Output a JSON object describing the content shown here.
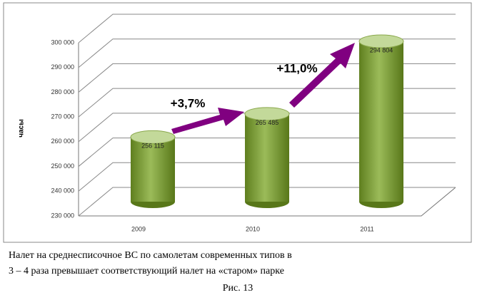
{
  "chart_data": {
    "type": "bar3d",
    "y_label": "часы",
    "categories": [
      "2009",
      "2010",
      "2011"
    ],
    "values": [
      256115,
      265485,
      294804
    ],
    "value_labels": [
      "256 115",
      "265 485",
      "294 804"
    ],
    "color": "#9bbb59",
    "ylim": [
      230000,
      300000
    ],
    "yticks": [
      {
        "value": 230000,
        "label": "230 000"
      },
      {
        "value": 240000,
        "label": "240 000"
      },
      {
        "value": 250000,
        "label": "250 000"
      },
      {
        "value": 260000,
        "label": "260 000"
      },
      {
        "value": 270000,
        "label": "270 000"
      },
      {
        "value": 280000,
        "label": "280 000"
      },
      {
        "value": 290000,
        "label": "290 000"
      },
      {
        "value": 300000,
        "label": "300 000"
      }
    ],
    "grid": true,
    "annotations": [
      "+3,7%",
      "+11,0%"
    ]
  },
  "caption": {
    "lines": [
      "Налет на среднесписочное ВС по самолетам современных типов в",
      "3 – 4 раза превышает соответствующий налет на «старом»  парке"
    ],
    "figure": "Рис. 13"
  }
}
